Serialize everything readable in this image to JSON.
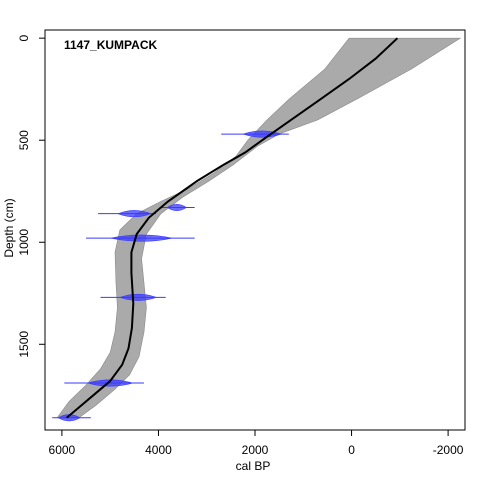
{
  "chart_data": {
    "type": "line",
    "title": "1147_KUMPACK",
    "xlabel": "cal BP",
    "ylabel": "Depth (cm)",
    "xlim": [
      6350,
      -2350
    ],
    "ylim": [
      1920,
      -40
    ],
    "x_reversed": true,
    "y_reversed": true,
    "x_ticks": [
      6000,
      4000,
      2000,
      0,
      -2000
    ],
    "x_tick_labels": [
      "6000",
      "4000",
      "2000",
      "0",
      "-2000"
    ],
    "y_ticks": [
      0,
      500,
      1000,
      1500
    ],
    "y_tick_labels": [
      "0",
      "500",
      "1000",
      "1500"
    ],
    "grid": false,
    "colors": {
      "median": "#000000",
      "envelope": "#aaaaaa",
      "dates": "#3a3aff"
    },
    "series": [
      {
        "values": [
          {
            "depth": 0,
            "age": -950
          },
          {
            "depth": 100,
            "age": -500
          },
          {
            "depth": 200,
            "age": 50
          },
          {
            "depth": 300,
            "age": 650
          },
          {
            "depth": 400,
            "age": 1250
          },
          {
            "depth": 500,
            "age": 1850
          },
          {
            "depth": 560,
            "age": 2200
          },
          {
            "depth": 620,
            "age": 2650
          },
          {
            "depth": 700,
            "age": 3200
          },
          {
            "depth": 800,
            "age": 3800
          },
          {
            "depth": 880,
            "age": 4200
          },
          {
            "depth": 960,
            "age": 4450
          },
          {
            "depth": 1050,
            "age": 4560
          },
          {
            "depth": 1150,
            "age": 4560
          },
          {
            "depth": 1300,
            "age": 4520
          },
          {
            "depth": 1420,
            "age": 4550
          },
          {
            "depth": 1520,
            "age": 4620
          },
          {
            "depth": 1600,
            "age": 4750
          },
          {
            "depth": 1680,
            "age": 5000
          },
          {
            "depth": 1760,
            "age": 5400
          },
          {
            "depth": 1830,
            "age": 5750
          },
          {
            "depth": 1860,
            "age": 5900
          }
        ]
      },
      {
        "min": [
          {
            "depth": 0,
            "age": -2250
          },
          {
            "depth": 150,
            "age": -1250
          },
          {
            "depth": 300,
            "age": -100
          },
          {
            "depth": 400,
            "age": 700
          },
          {
            "depth": 470,
            "age": 1500
          },
          {
            "depth": 530,
            "age": 1950
          },
          {
            "depth": 620,
            "age": 2450
          },
          {
            "depth": 700,
            "age": 2950
          },
          {
            "depth": 780,
            "age": 3500
          },
          {
            "depth": 860,
            "age": 3950
          },
          {
            "depth": 960,
            "age": 4250
          },
          {
            "depth": 1080,
            "age": 4350
          },
          {
            "depth": 1200,
            "age": 4300
          },
          {
            "depth": 1320,
            "age": 4250
          },
          {
            "depth": 1440,
            "age": 4300
          },
          {
            "depth": 1560,
            "age": 4400
          },
          {
            "depth": 1650,
            "age": 4600
          },
          {
            "depth": 1720,
            "age": 4900
          },
          {
            "depth": 1800,
            "age": 5300
          },
          {
            "depth": 1860,
            "age": 5650
          }
        ],
        "max": [
          {
            "depth": 0,
            "age": 50
          },
          {
            "depth": 150,
            "age": 550
          },
          {
            "depth": 300,
            "age": 1300
          },
          {
            "depth": 400,
            "age": 1750
          },
          {
            "depth": 500,
            "age": 2150
          },
          {
            "depth": 580,
            "age": 2400
          },
          {
            "depth": 660,
            "age": 2850
          },
          {
            "depth": 740,
            "age": 3400
          },
          {
            "depth": 800,
            "age": 3950
          },
          {
            "depth": 860,
            "age": 4450
          },
          {
            "depth": 940,
            "age": 4800
          },
          {
            "depth": 1050,
            "age": 4900
          },
          {
            "depth": 1200,
            "age": 4880
          },
          {
            "depth": 1320,
            "age": 4850
          },
          {
            "depth": 1440,
            "age": 4900
          },
          {
            "depth": 1540,
            "age": 5000
          },
          {
            "depth": 1620,
            "age": 5200
          },
          {
            "depth": 1700,
            "age": 5500
          },
          {
            "depth": 1780,
            "age": 5850
          },
          {
            "depth": 1860,
            "age": 6100
          }
        ]
      }
    ],
    "dated_samples": [
      {
        "depth": 470,
        "age": 1850,
        "range_min": 1300,
        "range_max": 2700,
        "width": 60
      },
      {
        "depth": 830,
        "age": 3620,
        "range_min": 3250,
        "range_max": 3950,
        "width": 50
      },
      {
        "depth": 860,
        "age": 4500,
        "range_min": 4050,
        "range_max": 5250,
        "width": 40
      },
      {
        "depth": 980,
        "age": 4350,
        "range_min": 3250,
        "range_max": 5500,
        "width": 70
      },
      {
        "depth": 1270,
        "age": 4420,
        "range_min": 3850,
        "range_max": 5200,
        "width": 60
      },
      {
        "depth": 1690,
        "age": 5000,
        "range_min": 4300,
        "range_max": 5950,
        "width": 60
      },
      {
        "depth": 1860,
        "age": 5850,
        "range_min": 5400,
        "range_max": 6200,
        "width": 45
      }
    ]
  }
}
